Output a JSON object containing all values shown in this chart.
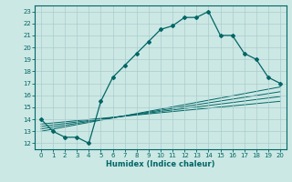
{
  "bg_color": "#cce8e4",
  "line_color": "#006666",
  "grid_color": "#aacccc",
  "xlabel": "Humidex (Indice chaleur)",
  "xlim": [
    -0.5,
    20.5
  ],
  "ylim": [
    11.5,
    23.5
  ],
  "xticks": [
    0,
    1,
    2,
    3,
    4,
    5,
    6,
    7,
    8,
    9,
    10,
    11,
    12,
    13,
    14,
    15,
    16,
    17,
    18,
    19,
    20
  ],
  "yticks": [
    12,
    13,
    14,
    15,
    16,
    17,
    18,
    19,
    20,
    21,
    22,
    23
  ],
  "main_x": [
    0,
    1,
    2,
    3,
    4,
    5,
    6,
    7,
    8,
    9,
    10,
    11,
    12,
    13,
    14,
    15,
    16,
    17,
    18,
    19,
    20
  ],
  "main_y": [
    14,
    13,
    12.5,
    12.5,
    12,
    15.5,
    17.5,
    18.5,
    19.5,
    20.5,
    21.5,
    21.8,
    22.5,
    22.5,
    23.0,
    21.0,
    21.0,
    19.5,
    19.0,
    17.5,
    17.0
  ],
  "line1_x": [
    0,
    20
  ],
  "line1_y": [
    13.0,
    16.7
  ],
  "line2_x": [
    0,
    20
  ],
  "line2_y": [
    13.2,
    16.3
  ],
  "line3_x": [
    0,
    20
  ],
  "line3_y": [
    13.4,
    15.9
  ],
  "line4_x": [
    0,
    20
  ],
  "line4_y": [
    13.6,
    15.5
  ]
}
